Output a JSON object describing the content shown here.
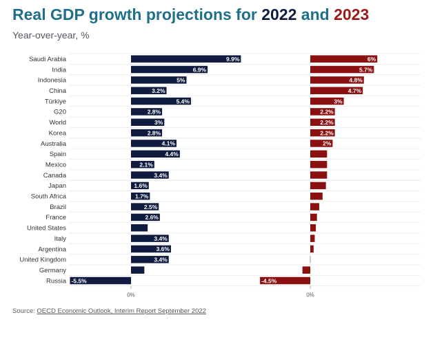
{
  "header": {
    "title_prefix": "Real GDP growth projections for ",
    "year_a": "2022",
    "and": " and ",
    "year_b": "2023",
    "subtitle": "Year-over-year, %"
  },
  "footer": {
    "source_label": "Source: ",
    "source_link": "OECD Economic Outlook, Interim Report September 2022"
  },
  "colors": {
    "series_2022": "#0f1c3f",
    "series_2023": "#8b1010",
    "title": "#1f6f8b"
  },
  "chart_data": {
    "type": "bar",
    "orientation": "horizontal",
    "title": "Real GDP growth projections for 2022 and 2023",
    "subtitle": "Year-over-year, %",
    "categories": [
      "Saudi Arabia",
      "India",
      "Indonesia",
      "China",
      "Türkiye",
      "G20",
      "World",
      "Korea",
      "Australia",
      "Spain",
      "Mexico",
      "Canada",
      "Japan",
      "South Africa",
      "Brazil",
      "France",
      "United States",
      "Italy",
      "Argentina",
      "United Kingdom",
      "Germany",
      "Russia"
    ],
    "series": [
      {
        "name": "2022",
        "values": [
          9.9,
          6.9,
          5,
          3.2,
          5.4,
          2.8,
          3,
          2.8,
          4.1,
          4.4,
          2.1,
          3.4,
          1.6,
          1.7,
          2.5,
          2.6,
          1.5,
          3.4,
          3.6,
          3.4,
          1.2,
          -5.5
        ],
        "labels": [
          "9.9%",
          "6.9%",
          "5%",
          "3.2%",
          "5.4%",
          "2.8%",
          "3%",
          "2.8%",
          "4.1%",
          "4.4%",
          "2.1%",
          "3.4%",
          "1.6%",
          "1.7%",
          "2.5%",
          "2.6%",
          "",
          "3.4%",
          "3.6%",
          "3.4%",
          "",
          "-5.5%"
        ]
      },
      {
        "name": "2023",
        "values": [
          6,
          5.7,
          4.8,
          4.7,
          3,
          2.2,
          2.2,
          2.2,
          2,
          1.5,
          1.5,
          1.5,
          1.4,
          1.1,
          0.8,
          0.6,
          0.5,
          0.4,
          0.3,
          0,
          -0.7,
          -4.5
        ],
        "labels": [
          "6%",
          "5.7%",
          "4.8%",
          "4.7%",
          "3%",
          "2.2%",
          "2.2%",
          "2.2%",
          "2%",
          "",
          "",
          "",
          "",
          "",
          "",
          "",
          "",
          "",
          "",
          "",
          "",
          "-4.5%"
        ]
      }
    ],
    "zero_tick_label": "0%",
    "xlabel": "",
    "ylabel": "",
    "grid": "horizontal row separators"
  }
}
